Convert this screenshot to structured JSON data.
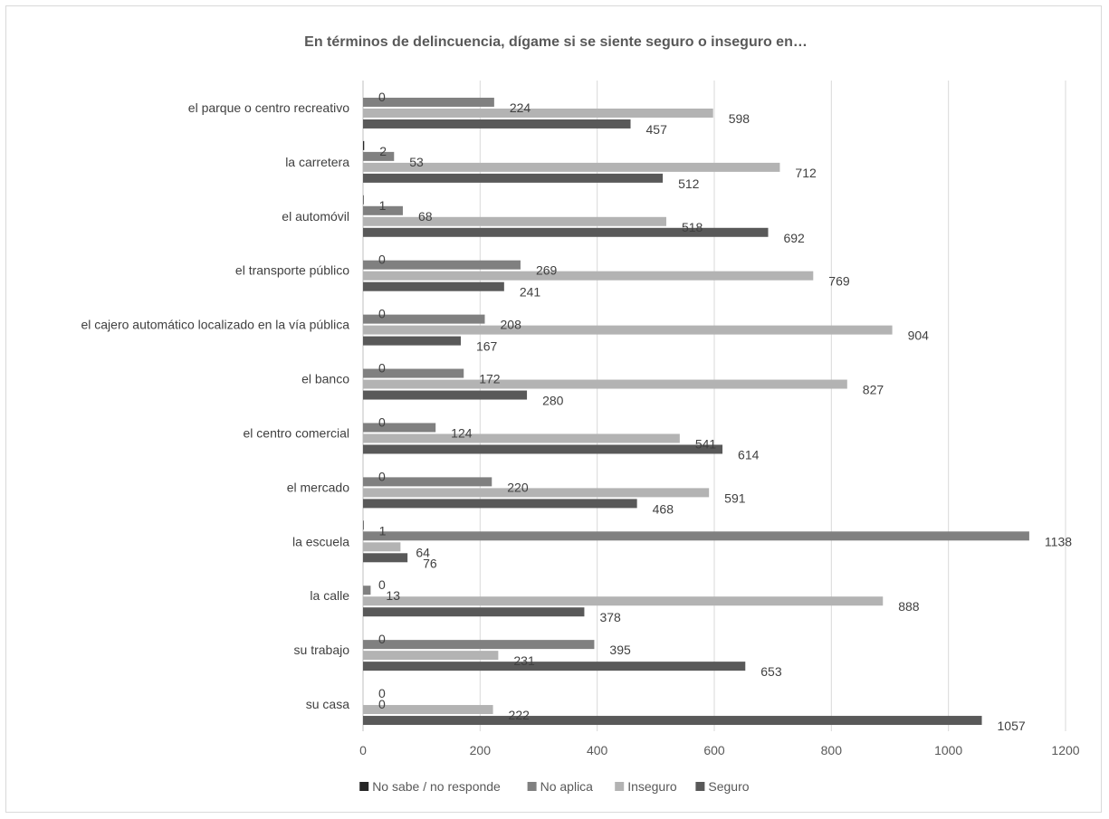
{
  "chart_data": {
    "type": "bar",
    "orientation": "horizontal",
    "title": "En términos de delincuencia, dígame si se siente seguro o inseguro en…",
    "categories": [
      "el parque o centro recreativo",
      "la carretera",
      "el automóvil",
      "el transporte público",
      "el cajero automático localizado en la vía pública",
      "el banco",
      "el centro comercial",
      "el mercado",
      "la escuela",
      "la calle",
      "su trabajo",
      "su casa"
    ],
    "series": [
      {
        "name": "No sabe / no responde",
        "color": "#262626",
        "values": [
          0,
          2,
          1,
          0,
          0,
          0,
          0,
          0,
          1,
          0,
          0,
          0
        ]
      },
      {
        "name": "No aplica",
        "color": "#808080",
        "values": [
          224,
          53,
          68,
          269,
          208,
          172,
          124,
          220,
          1138,
          13,
          395,
          0
        ]
      },
      {
        "name": "Inseguro",
        "color": "#b3b3b3",
        "values": [
          598,
          712,
          518,
          769,
          904,
          827,
          541,
          591,
          64,
          888,
          231,
          222
        ]
      },
      {
        "name": "Seguro",
        "color": "#595959",
        "values": [
          457,
          512,
          692,
          241,
          167,
          280,
          614,
          468,
          76,
          378,
          653,
          1057
        ]
      }
    ],
    "xlim": [
      0,
      1200
    ],
    "xticks": [
      "0",
      "200",
      "400",
      "600",
      "800",
      "1000",
      "1200"
    ],
    "grid": true,
    "legend_position": "bottom"
  }
}
